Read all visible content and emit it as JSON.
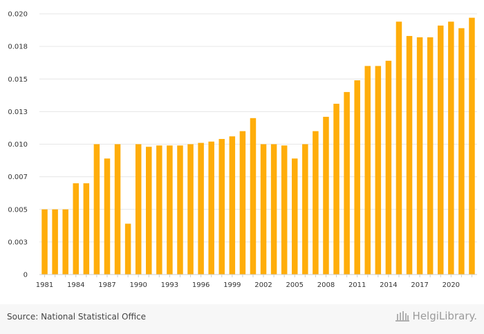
{
  "chart_data": {
    "type": "bar",
    "title": "",
    "xlabel": "",
    "ylabel": "",
    "ylim": [
      0,
      0.02
    ],
    "yticks": [
      0,
      0.0025,
      0.005,
      0.0075,
      0.01,
      0.0125,
      0.015,
      0.0175,
      0.02
    ],
    "ytick_labels": [
      "0",
      "0.003",
      "0.005",
      "0.007",
      "0.010",
      "0.013",
      "0.015",
      "0.018",
      "0.020"
    ],
    "categories": [
      "1981",
      "1982",
      "1983",
      "1984",
      "1985",
      "1986",
      "1987",
      "1988",
      "1989",
      "1990",
      "1991",
      "1992",
      "1993",
      "1994",
      "1995",
      "1996",
      "1997",
      "1998",
      "1999",
      "2000",
      "2001",
      "2002",
      "2003",
      "2004",
      "2005",
      "2006",
      "2007",
      "2008",
      "2009",
      "2010",
      "2011",
      "2012",
      "2013",
      "2014",
      "2015",
      "2016",
      "2017",
      "2018",
      "2019",
      "2020",
      "2021",
      "2022"
    ],
    "xtick_labels": [
      "1981",
      "",
      "",
      "1984",
      "",
      "",
      "1987",
      "",
      "",
      "1990",
      "",
      "",
      "1993",
      "",
      "",
      "1996",
      "",
      "",
      "1999",
      "",
      "",
      "2002",
      "",
      "",
      "2005",
      "",
      "",
      "2008",
      "",
      "",
      "2011",
      "",
      "",
      "2014",
      "",
      "",
      "2017",
      "",
      "",
      "2020",
      "",
      ""
    ],
    "values": [
      0.005,
      0.005,
      0.005,
      0.007,
      0.007,
      0.01,
      0.0089,
      0.01,
      0.0039,
      0.01,
      0.0098,
      0.0099,
      0.0099,
      0.0099,
      0.01,
      0.0101,
      0.0102,
      0.0104,
      0.0106,
      0.011,
      0.012,
      0.01,
      0.01,
      0.0099,
      0.0089,
      0.01,
      0.011,
      0.0121,
      0.0131,
      0.014,
      0.0149,
      0.016,
      0.016,
      0.0164,
      0.0194,
      0.0183,
      0.0182,
      0.0182,
      0.0191,
      0.0194,
      0.0189,
      0.0197
    ],
    "color": "#ffad0a",
    "grid": true,
    "legend": "none"
  },
  "footer": {
    "source": "Source: National Statistical Office",
    "brand": "HelgiLibrary."
  },
  "colors": {
    "grid": "#e6e6e6",
    "axis": "#cccccc",
    "footer_bg": "#f7f7f7"
  }
}
